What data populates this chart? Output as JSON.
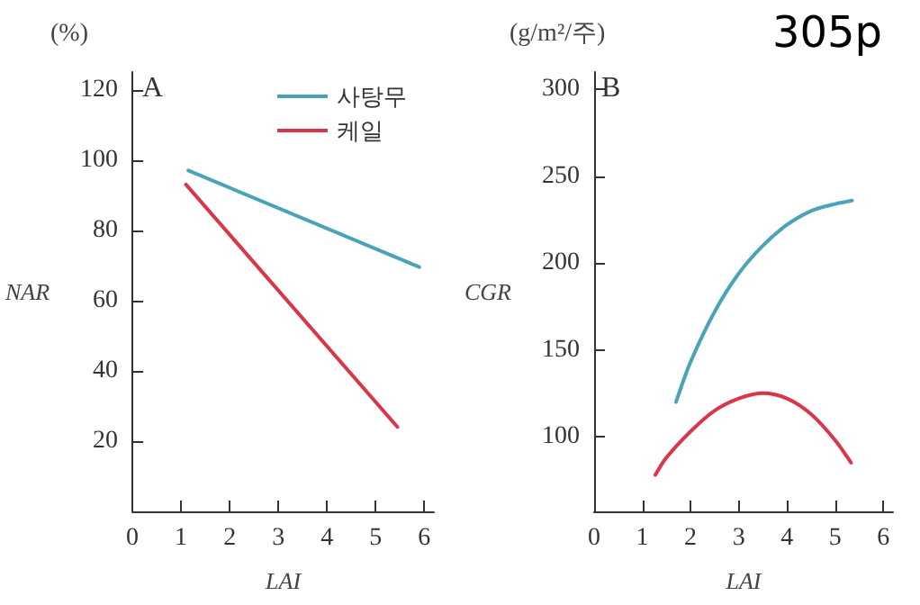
{
  "chart_data": [
    {
      "type": "line",
      "title": "A",
      "xlabel": "LAI",
      "ylabel": "NAR",
      "annotations": [
        "(%)"
      ],
      "xlim": [
        0,
        6.2
      ],
      "xticks": [
        0,
        1,
        2,
        3,
        4,
        5,
        6
      ],
      "ylim": [
        0,
        125
      ],
      "yticks": [
        20,
        40,
        60,
        80,
        100,
        120
      ],
      "grid": false,
      "legend": "top right",
      "series": [
        {
          "name": "사탕무",
          "color": "#4aa3b8",
          "x": [
            1.15,
            5.9
          ],
          "values": [
            97,
            69.5
          ]
        },
        {
          "name": "케일",
          "color": "#d9364a",
          "x": [
            1.1,
            5.45
          ],
          "values": [
            93,
            24
          ]
        }
      ]
    },
    {
      "type": "line",
      "title": "B",
      "xlabel": "LAI",
      "ylabel": "CGR",
      "annotations": [
        "(g/m²/주)",
        "305p"
      ],
      "xlim": [
        0,
        6.2
      ],
      "xticks": [
        0,
        1,
        2,
        3,
        4,
        5,
        6
      ],
      "ylim": [
        57,
        310
      ],
      "yticks": [
        100,
        150,
        200,
        250,
        300
      ],
      "grid": false,
      "series": [
        {
          "color": "#4aa3b8",
          "x": [
            1.7,
            2,
            2.5,
            3,
            3.5,
            4,
            4.5,
            5,
            5.35
          ],
          "values": [
            120,
            143,
            172,
            194,
            210,
            222,
            230,
            234,
            236
          ]
        },
        {
          "color": "#d9364a",
          "x": [
            1.27,
            1.5,
            2,
            2.5,
            3,
            3.5,
            4,
            4.5,
            5,
            5.33
          ],
          "values": [
            78,
            88,
            103,
            115,
            122,
            125,
            122,
            113,
            98,
            85
          ]
        }
      ]
    }
  ]
}
